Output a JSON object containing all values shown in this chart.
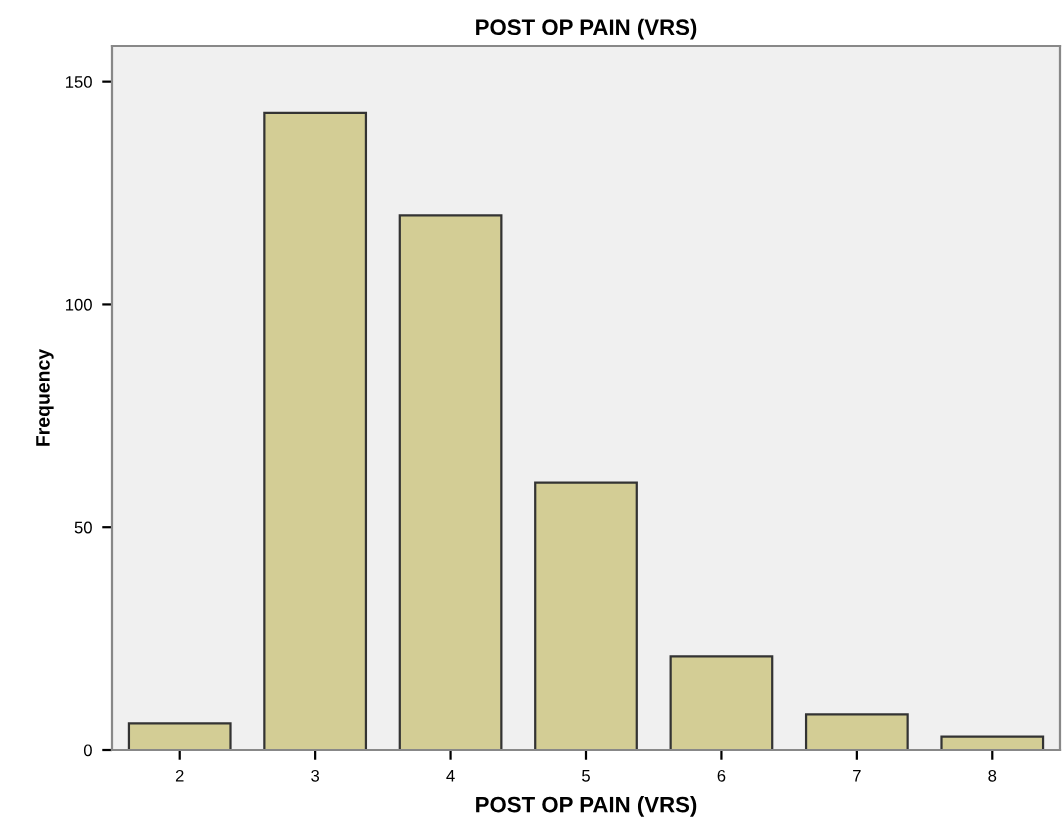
{
  "chart_data": {
    "type": "bar",
    "title": "POST OP PAIN (VRS)",
    "xlabel": "POST OP PAIN (VRS)",
    "ylabel": "Frequency",
    "categories": [
      "2",
      "3",
      "4",
      "5",
      "6",
      "7",
      "8"
    ],
    "values": [
      6,
      143,
      120,
      60,
      21,
      8,
      3
    ],
    "color": "#d3cd95",
    "ylim": [
      0,
      158
    ],
    "yticks": [
      0,
      50,
      100,
      150
    ],
    "grid": false
  }
}
